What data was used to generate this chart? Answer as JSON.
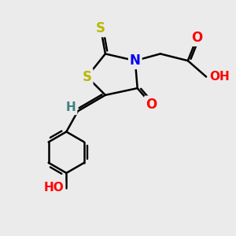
{
  "bg_color": "#ebebeb",
  "atom_colors": {
    "S": "#b8b800",
    "N": "#0000ee",
    "O": "#ff0000",
    "H": "#408080",
    "C": "#000000"
  },
  "bond_color": "#000000",
  "bond_width": 1.8
}
